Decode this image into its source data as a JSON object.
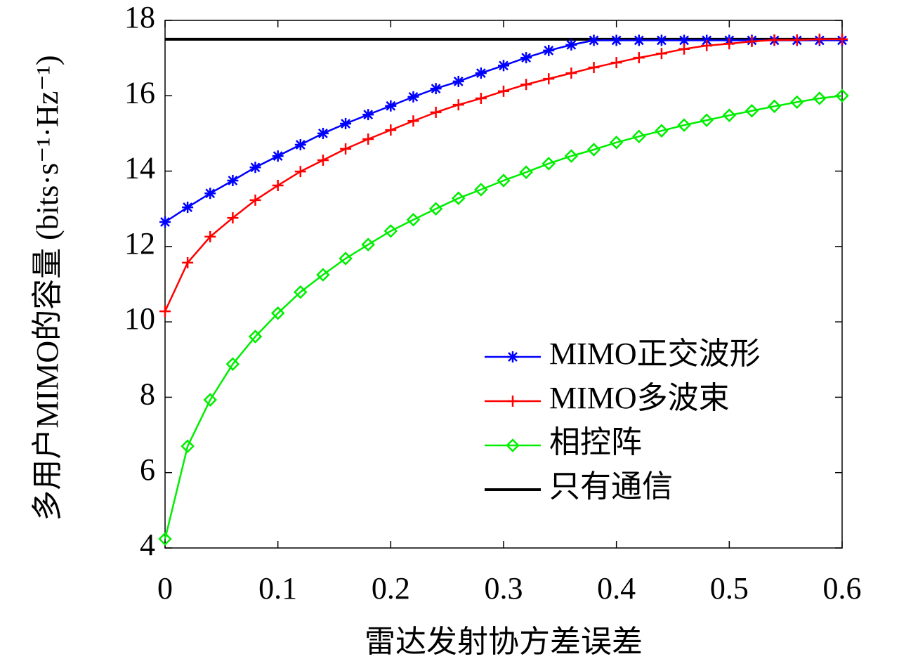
{
  "chart_data": {
    "type": "line",
    "xlabel": "雷达发射协方差误差",
    "ylabel": "多用户MIMO的容量 (bits·s⁻¹·Hz⁻¹)",
    "x": [
      0,
      0.02,
      0.04,
      0.06,
      0.08,
      0.1,
      0.12,
      0.14,
      0.16,
      0.18,
      0.2,
      0.22,
      0.24,
      0.26,
      0.28,
      0.3,
      0.32,
      0.34,
      0.36,
      0.38,
      0.4,
      0.42,
      0.44,
      0.46,
      0.48,
      0.5,
      0.52,
      0.54,
      0.56,
      0.58,
      0.6
    ],
    "series": [
      {
        "name": "MIMO正交波形",
        "color": "#0000ff",
        "marker": "asterisk",
        "values": [
          12.65,
          13.04,
          13.41,
          13.75,
          14.1,
          14.4,
          14.7,
          15.0,
          15.26,
          15.5,
          15.73,
          15.97,
          16.19,
          16.38,
          16.6,
          16.8,
          17.01,
          17.2,
          17.35,
          17.47,
          17.47,
          17.47,
          17.47,
          17.47,
          17.47,
          17.47,
          17.47,
          17.47,
          17.47,
          17.47,
          17.47
        ]
      },
      {
        "name": "MIMO多波束",
        "color": "#ff0000",
        "marker": "plus",
        "values": [
          10.28,
          11.57,
          12.26,
          12.76,
          13.23,
          13.62,
          13.99,
          14.29,
          14.59,
          14.85,
          15.09,
          15.33,
          15.56,
          15.76,
          15.93,
          16.12,
          16.3,
          16.45,
          16.6,
          16.75,
          16.88,
          17.01,
          17.12,
          17.24,
          17.33,
          17.38,
          17.44,
          17.48,
          17.48,
          17.5,
          17.5
        ]
      },
      {
        "name": "相控阵",
        "color": "#00ee00",
        "marker": "diamond",
        "values": [
          4.24,
          6.7,
          7.93,
          8.88,
          9.61,
          10.23,
          10.79,
          11.25,
          11.68,
          12.05,
          12.41,
          12.71,
          13.0,
          13.28,
          13.51,
          13.75,
          13.97,
          14.2,
          14.4,
          14.57,
          14.76,
          14.92,
          15.07,
          15.22,
          15.35,
          15.48,
          15.6,
          15.72,
          15.83,
          15.93,
          16.0
        ]
      }
    ],
    "reference_line": {
      "name": "只有通信",
      "color": "#000000",
      "value": 17.5
    },
    "xlim": [
      0,
      0.6
    ],
    "xticks": [
      0,
      0.1,
      0.2,
      0.3,
      0.4,
      0.5,
      0.6
    ],
    "ylim": [
      4,
      18
    ],
    "yticks": [
      4,
      6,
      8,
      10,
      12,
      14,
      16,
      18
    ],
    "legend": "lower right",
    "grid": false
  }
}
